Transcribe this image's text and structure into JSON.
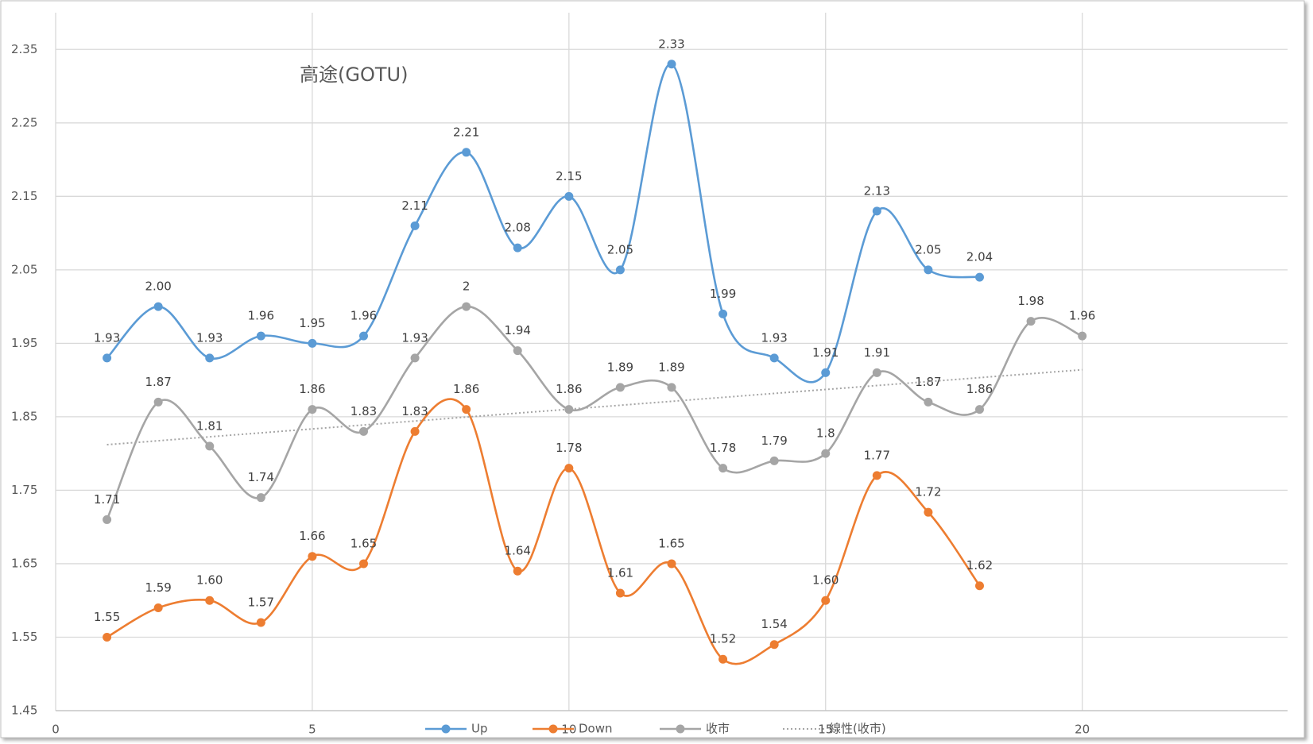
{
  "chart_data": {
    "type": "line",
    "title": "高途(GOTU)",
    "xlim": [
      0,
      24
    ],
    "xticks": [
      0,
      5,
      10,
      15,
      20
    ],
    "ylim": [
      1.45,
      2.4
    ],
    "yticks": [
      1.45,
      1.55,
      1.65,
      1.75,
      1.85,
      1.95,
      2.05,
      2.15,
      2.25,
      2.35
    ],
    "grid": true,
    "legend": "bottom",
    "smooth": true,
    "series": [
      {
        "name": "Up",
        "color": "#5b9bd5",
        "markers": true,
        "x": [
          1,
          2,
          3,
          4,
          5,
          6,
          7,
          8,
          9,
          10,
          11,
          12,
          13,
          14,
          15,
          16,
          17,
          18
        ],
        "values": [
          1.93,
          2.0,
          1.93,
          1.96,
          1.95,
          1.96,
          2.11,
          2.21,
          2.08,
          2.15,
          2.05,
          2.33,
          1.99,
          1.93,
          1.91,
          2.13,
          2.05,
          2.04
        ],
        "value_labels": [
          "1.93",
          "2.00",
          "1.93",
          "1.96",
          "1.95",
          "1.96",
          "2.11",
          "2.21",
          "2.08",
          "2.15",
          "2.05",
          "2.33",
          "1.99",
          "1.93",
          "1.91",
          "2.13",
          "2.05",
          "2.04"
        ]
      },
      {
        "name": "Down",
        "color": "#ed7d31",
        "markers": true,
        "x": [
          1,
          2,
          3,
          4,
          5,
          6,
          7,
          8,
          9,
          10,
          11,
          12,
          13,
          14,
          15,
          16,
          17,
          18
        ],
        "values": [
          1.55,
          1.59,
          1.6,
          1.57,
          1.66,
          1.65,
          1.83,
          1.86,
          1.64,
          1.78,
          1.61,
          1.65,
          1.52,
          1.54,
          1.6,
          1.77,
          1.72,
          1.62
        ],
        "value_labels": [
          "1.55",
          "1.59",
          "1.60",
          "1.57",
          "1.66",
          "1.65",
          "1.83",
          "1.86",
          "1.64",
          "1.78",
          "1.61",
          "1.65",
          "1.52",
          "1.54",
          "1.60",
          "1.77",
          "1.72",
          "1.62"
        ]
      },
      {
        "name": "收市",
        "color": "#a5a5a5",
        "markers": true,
        "x": [
          1,
          2,
          3,
          4,
          5,
          6,
          7,
          8,
          9,
          10,
          11,
          12,
          13,
          14,
          15,
          16,
          17,
          18,
          19,
          20
        ],
        "values": [
          1.71,
          1.87,
          1.81,
          1.74,
          1.86,
          1.83,
          1.93,
          2,
          1.94,
          1.86,
          1.89,
          1.89,
          1.78,
          1.79,
          1.8,
          1.91,
          1.87,
          1.86,
          1.98,
          1.96
        ]
      },
      {
        "name": "線性(收市)",
        "color": "#a5a5a5",
        "markers": false,
        "dotted": true,
        "x": [
          1,
          20
        ],
        "values": [
          1.812,
          1.914
        ]
      }
    ]
  }
}
